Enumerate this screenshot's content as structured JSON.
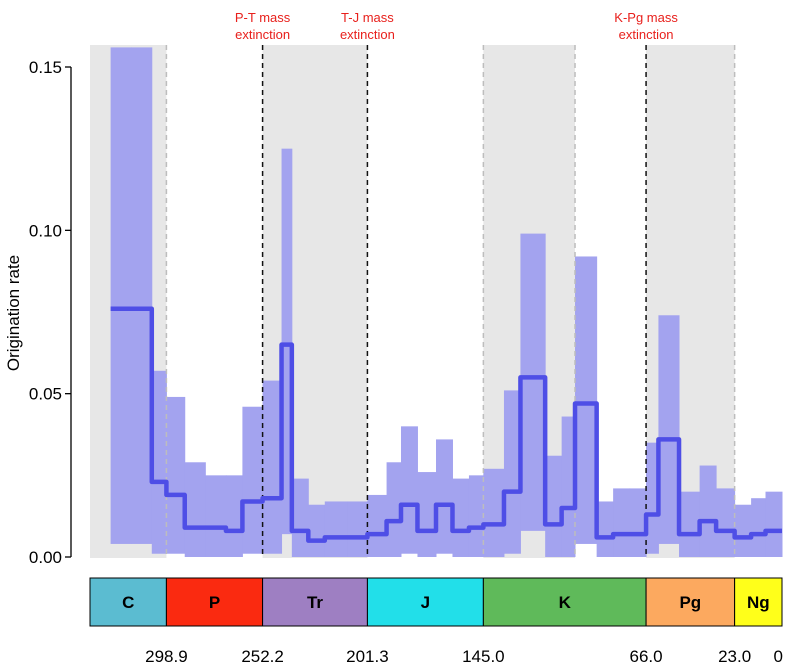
{
  "chart_data": {
    "type": "line",
    "title": "",
    "xlabel": "",
    "ylabel": "Origination rate",
    "ylim": [
      0,
      0.155
    ],
    "xlim": [
      336,
      0
    ],
    "yticks": [
      0.0,
      0.05,
      0.1,
      0.15
    ],
    "ytick_labels": [
      "0.00",
      "0.05",
      "0.10",
      "0.15"
    ],
    "xtick_values": [
      298.9,
      252.2,
      201.3,
      145.0,
      66.0,
      23.0,
      0
    ],
    "xtick_labels": [
      "298.9",
      "252.2",
      "201.3",
      "145.0",
      "66.0",
      "23.0",
      "0"
    ],
    "colors": {
      "mean_line": "#4e4ee6",
      "ci_band": "#a3a3ef",
      "shade": "#e7e7e7",
      "annotation": "#e8201c"
    },
    "shaded_intervals": [
      [
        336,
        298.9
      ],
      [
        252.2,
        201.3
      ],
      [
        145.0,
        100.5
      ],
      [
        66.0,
        23.0
      ]
    ],
    "dashed_boundaries": [
      {
        "x": 298.9,
        "kind": "period"
      },
      {
        "x": 252.2,
        "kind": "mass-extinction"
      },
      {
        "x": 201.3,
        "kind": "mass-extinction"
      },
      {
        "x": 145.0,
        "kind": "period"
      },
      {
        "x": 100.5,
        "kind": "period"
      },
      {
        "x": 66.0,
        "kind": "mass-extinction"
      },
      {
        "x": 23.0,
        "kind": "period"
      }
    ],
    "annotations": [
      {
        "x": 252.2,
        "text": [
          "P-T mass",
          "extinction"
        ]
      },
      {
        "x": 201.3,
        "text": [
          "T-J mass",
          "extinction"
        ]
      },
      {
        "x": 66.0,
        "text": [
          "K-Pg mass",
          "extinction"
        ]
      }
    ],
    "periods": [
      {
        "label": "C",
        "start": 359,
        "end": 298.9,
        "color": "#5bbcd1"
      },
      {
        "label": "P",
        "start": 298.9,
        "end": 252.2,
        "color": "#fa2a10"
      },
      {
        "label": "Tr",
        "start": 252.2,
        "end": 201.3,
        "color": "#9e7fc2"
      },
      {
        "label": "J",
        "start": 201.3,
        "end": 145.0,
        "color": "#22dfe9"
      },
      {
        "label": "K",
        "start": 145.0,
        "end": 66.0,
        "color": "#5fba5a"
      },
      {
        "label": "Pg",
        "start": 66.0,
        "end": 23.0,
        "color": "#fca95f"
      },
      {
        "label": "Ng",
        "start": 23.0,
        "end": 0,
        "color": "#ffff1a"
      }
    ],
    "series": [
      {
        "name": "",
        "role": "mean",
        "x": [
          326,
          316,
          306,
          298.9,
          290,
          280,
          270,
          262,
          252.2,
          243,
          238,
          230,
          222,
          211,
          201.3,
          192,
          185,
          177,
          168,
          160,
          152,
          145.0,
          135,
          127,
          115,
          107,
          100.5,
          90,
          82,
          74,
          66.0,
          60,
          50,
          40,
          32,
          23.0,
          15,
          8,
          0
        ],
        "y": [
          0.076,
          0.076,
          0.023,
          0.019,
          0.009,
          0.009,
          0.008,
          0.017,
          0.018,
          0.065,
          0.008,
          0.005,
          0.006,
          0.006,
          0.007,
          0.011,
          0.016,
          0.008,
          0.016,
          0.008,
          0.009,
          0.01,
          0.02,
          0.055,
          0.01,
          0.015,
          0.047,
          0.006,
          0.007,
          0.007,
          0.013,
          0.036,
          0.007,
          0.011,
          0.008,
          0.006,
          0.007,
          0.008,
          0.008
        ]
      },
      {
        "name": "",
        "role": "ci-upper",
        "x": [
          326,
          316,
          306,
          298.9,
          290,
          280,
          270,
          262,
          252.2,
          243,
          238,
          230,
          222,
          211,
          201.3,
          192,
          185,
          177,
          168,
          160,
          152,
          145.0,
          135,
          127,
          115,
          107,
          100.5,
          90,
          82,
          74,
          66.0,
          60,
          50,
          40,
          32,
          23.0,
          15,
          8,
          0
        ],
        "y": [
          0.156,
          0.156,
          0.057,
          0.049,
          0.029,
          0.025,
          0.025,
          0.046,
          0.054,
          0.125,
          0.024,
          0.016,
          0.017,
          0.017,
          0.019,
          0.029,
          0.04,
          0.026,
          0.036,
          0.024,
          0.025,
          0.027,
          0.051,
          0.099,
          0.031,
          0.043,
          0.092,
          0.017,
          0.021,
          0.021,
          0.035,
          0.074,
          0.02,
          0.028,
          0.021,
          0.016,
          0.018,
          0.02,
          0.02
        ]
      },
      {
        "name": "",
        "role": "ci-lower",
        "x": [
          326,
          316,
          306,
          298.9,
          290,
          280,
          270,
          262,
          252.2,
          243,
          238,
          230,
          222,
          211,
          201.3,
          192,
          185,
          177,
          168,
          160,
          152,
          145.0,
          135,
          127,
          115,
          107,
          100.5,
          90,
          82,
          74,
          66.0,
          60,
          50,
          40,
          32,
          23.0,
          15,
          8,
          0
        ],
        "y": [
          0.004,
          0.004,
          0.001,
          0.001,
          0.0,
          0.0,
          0.0,
          0.001,
          0.001,
          0.007,
          0.0,
          0.0,
          0.0,
          0.0,
          0.0,
          0.0,
          0.001,
          0.0,
          0.001,
          0.0,
          0.0,
          0.0,
          0.001,
          0.008,
          0.0,
          0.0,
          0.004,
          0.0,
          0.0,
          0.0,
          0.001,
          0.004,
          0.0,
          0.0,
          0.0,
          0.0,
          0.0,
          0.0,
          0.0
        ]
      }
    ]
  }
}
